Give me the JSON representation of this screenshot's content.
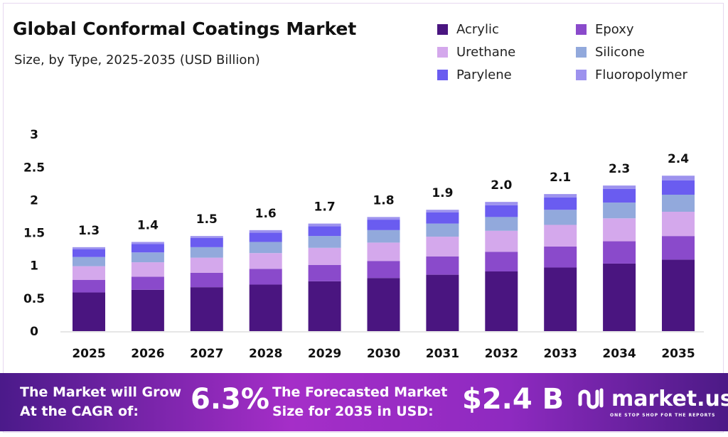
{
  "chart_data": {
    "type": "bar",
    "stacked": true,
    "title": "Global Conformal Coatings Market",
    "subtitle": "Size, by Type, 2025-2035 (USD Billion)",
    "categories": [
      "2025",
      "2026",
      "2027",
      "2028",
      "2029",
      "2030",
      "2031",
      "2032",
      "2033",
      "2034",
      "2035"
    ],
    "totals_labels": [
      "1.3",
      "1.4",
      "1.5",
      "1.6",
      "1.7",
      "1.8",
      "1.9",
      "2.0",
      "2.1",
      "2.3",
      "2.4"
    ],
    "series": [
      {
        "name": "Acrylic",
        "color": "#4a1580",
        "values": [
          0.59,
          0.63,
          0.67,
          0.71,
          0.76,
          0.81,
          0.86,
          0.91,
          0.97,
          1.03,
          1.09
        ]
      },
      {
        "name": "Epoxy",
        "color": "#8a4acb",
        "values": [
          0.19,
          0.2,
          0.22,
          0.24,
          0.25,
          0.26,
          0.28,
          0.3,
          0.32,
          0.34,
          0.36
        ]
      },
      {
        "name": "Urethane",
        "color": "#d4a8ec",
        "values": [
          0.21,
          0.22,
          0.23,
          0.24,
          0.26,
          0.28,
          0.3,
          0.32,
          0.33,
          0.35,
          0.37
        ]
      },
      {
        "name": "Silicone",
        "color": "#92a9dc",
        "values": [
          0.14,
          0.15,
          0.16,
          0.17,
          0.18,
          0.19,
          0.2,
          0.21,
          0.23,
          0.24,
          0.26
        ]
      },
      {
        "name": "Parylene",
        "color": "#6a5cf0",
        "values": [
          0.12,
          0.13,
          0.14,
          0.14,
          0.15,
          0.16,
          0.17,
          0.18,
          0.19,
          0.21,
          0.22
        ]
      },
      {
        "name": "Fluoropolymer",
        "color": "#9d92ee",
        "values": [
          0.03,
          0.03,
          0.03,
          0.04,
          0.04,
          0.04,
          0.04,
          0.05,
          0.05,
          0.05,
          0.07
        ]
      }
    ],
    "yticks": [
      "0",
      "0.5",
      "1",
      "1.5",
      "2",
      "2.5",
      "3"
    ],
    "ylim": [
      0,
      3
    ],
    "legend": "top-right",
    "grid": false
  },
  "footer": {
    "cagr_text_1": "The Market will Grow",
    "cagr_text_2": "At the CAGR of:",
    "cagr_value": "6.3%",
    "forecast_text_1": "The Forecasted Market",
    "forecast_text_2": "Size for 2035 in USD:",
    "forecast_value": "$2.4 B",
    "brand": "market.us",
    "brand_tagline": "ONE STOP SHOP FOR THE REPORTS"
  }
}
